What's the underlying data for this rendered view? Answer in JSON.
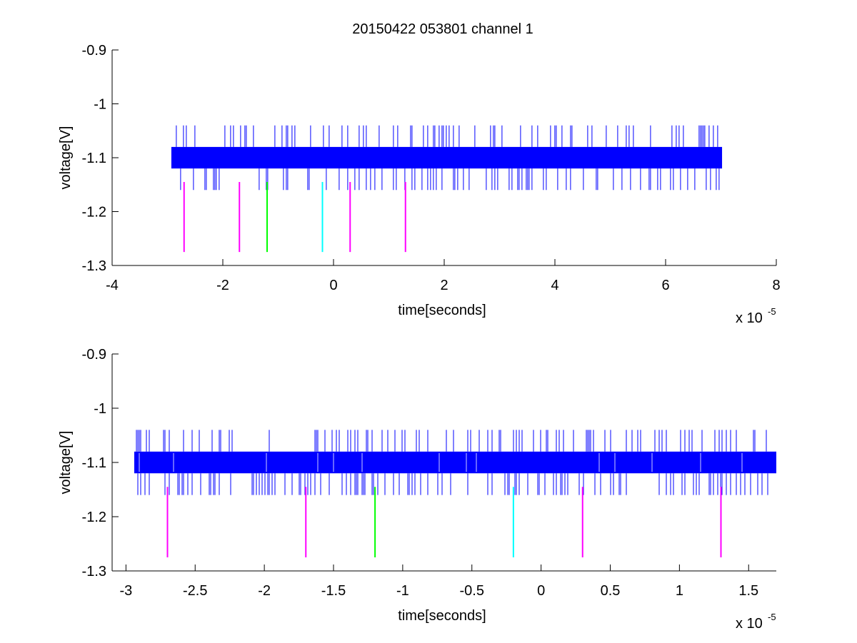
{
  "title": "20150422 053801 channel 1",
  "colors": {
    "signal": "#0000ff",
    "marker_magenta": "#ff00ff",
    "marker_green": "#00ff00",
    "marker_cyan": "#00ffff"
  },
  "chart_data": [
    {
      "type": "line",
      "title": "20150422 053801 channel 1",
      "xlabel": "time[seconds]",
      "ylabel": "voltage[V]",
      "x_exponent_label": "x 10",
      "x_exponent": "-5",
      "xlim": [
        -4,
        8
      ],
      "ylim": [
        -1.3,
        -0.9
      ],
      "xticks": [
        -4,
        -2,
        0,
        2,
        4,
        6,
        8
      ],
      "xtick_labels": [
        "-4",
        "-2",
        "0",
        "2",
        "4",
        "6",
        "8"
      ],
      "yticks": [
        -0.9,
        -1,
        -1.1,
        -1.2,
        -1.3
      ],
      "ytick_labels": [
        "-0.9",
        "-1",
        "-1.1",
        "-1.2",
        "-1.3"
      ],
      "grid": false,
      "signal": {
        "x_range": [
          -2.93,
          7.02
        ],
        "band": [
          -1.12,
          -1.08
        ],
        "spike_high": -1.04,
        "spike_low": -1.16
      },
      "markers": [
        {
          "x": -2.7,
          "y": [
            -1.275,
            -1.145
          ],
          "color": "#ff00ff"
        },
        {
          "x": -1.7,
          "y": [
            -1.275,
            -1.145
          ],
          "color": "#ff00ff"
        },
        {
          "x": -1.2,
          "y": [
            -1.275,
            -1.145
          ],
          "color": "#00ff00"
        },
        {
          "x": -0.2,
          "y": [
            -1.275,
            -1.145
          ],
          "color": "#00ffff"
        },
        {
          "x": 0.3,
          "y": [
            -1.275,
            -1.145
          ],
          "color": "#ff00ff"
        },
        {
          "x": 1.3,
          "y": [
            -1.275,
            -1.145
          ],
          "color": "#ff00ff"
        }
      ]
    },
    {
      "type": "line",
      "title": "",
      "xlabel": "time[seconds]",
      "ylabel": "voltage[V]",
      "x_exponent_label": "x 10",
      "x_exponent": "-5",
      "xlim": [
        -3.1,
        1.7
      ],
      "ylim": [
        -1.3,
        -0.9
      ],
      "xticks": [
        -3,
        -2.5,
        -2,
        -1.5,
        -1,
        -0.5,
        0,
        0.5,
        1,
        1.5
      ],
      "xtick_labels": [
        "-3",
        "-2.5",
        "-2",
        "-1.5",
        "-1",
        "-0.5",
        "0",
        "0.5",
        "1",
        "1.5"
      ],
      "yticks": [
        -0.9,
        -1,
        -1.1,
        -1.2,
        -1.3
      ],
      "ytick_labels": [
        "-0.9",
        "-1",
        "-1.1",
        "-1.2",
        "-1.3"
      ],
      "grid": false,
      "signal": {
        "x_range": [
          -2.94,
          1.7
        ],
        "band": [
          -1.12,
          -1.08
        ],
        "spike_high": -1.04,
        "spike_low": -1.16
      },
      "markers": [
        {
          "x": -2.7,
          "y": [
            -1.275,
            -1.145
          ],
          "color": "#ff00ff"
        },
        {
          "x": -1.7,
          "y": [
            -1.275,
            -1.145
          ],
          "color": "#ff00ff"
        },
        {
          "x": -1.2,
          "y": [
            -1.275,
            -1.145
          ],
          "color": "#00ff00"
        },
        {
          "x": -0.2,
          "y": [
            -1.275,
            -1.145
          ],
          "color": "#00ffff"
        },
        {
          "x": 0.3,
          "y": [
            -1.275,
            -1.145
          ],
          "color": "#ff00ff"
        },
        {
          "x": 1.3,
          "y": [
            -1.275,
            -1.145
          ],
          "color": "#ff00ff"
        }
      ]
    }
  ]
}
